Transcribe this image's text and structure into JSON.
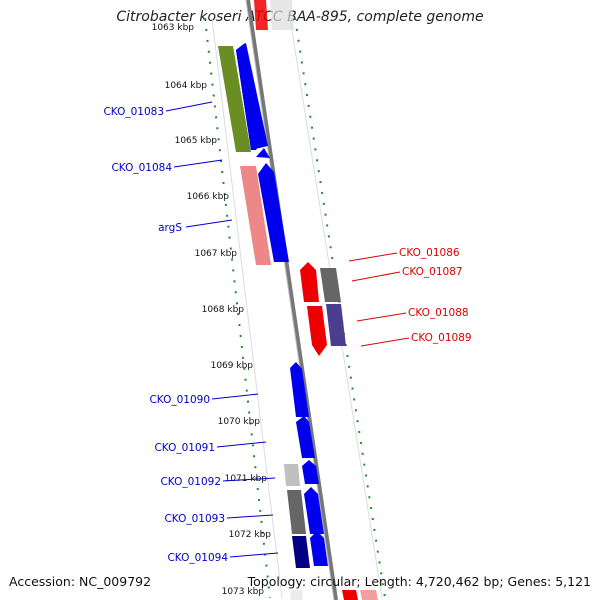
{
  "title": "Citrobacter koseri ATCC BAA-895, complete genome",
  "footer": {
    "accession": "Accession: NC_009792",
    "topology": "Topology: circular; Length: 4,720,462 bp; Genes: 5,121"
  },
  "colors": {
    "backbone": "#888888",
    "feature_blue": "#0000ee",
    "feature_red": "#ee0000",
    "feature_olive": "#6b8e23",
    "feature_pink": "#ee8888",
    "feature_gray": "#666666",
    "feature_slate": "#4a3f8f",
    "feature_navy": "#000080",
    "feature_lightgray": "#c0c0c0",
    "dots": "#228b22",
    "label_blue": "#0000cc",
    "label_red": "#dd0000"
  },
  "ticks": [
    {
      "label": "1063 kbp"
    },
    {
      "label": "1064 kbp"
    },
    {
      "label": "1065 kbp"
    },
    {
      "label": "1066 kbp"
    },
    {
      "label": "1067 kbp"
    },
    {
      "label": "1068 kbp"
    },
    {
      "label": "1069 kbp"
    },
    {
      "label": "1070 kbp"
    },
    {
      "label": "1071 kbp"
    },
    {
      "label": "1072 kbp"
    },
    {
      "label": "1073 kbp"
    }
  ],
  "left_labels": [
    {
      "text": "CKO_01083"
    },
    {
      "text": "CKO_01084"
    },
    {
      "text": "argS"
    },
    {
      "text": "CKO_01090"
    },
    {
      "text": "CKO_01091"
    },
    {
      "text": "CKO_01092"
    },
    {
      "text": "CKO_01093"
    },
    {
      "text": "CKO_01094"
    }
  ],
  "right_labels": [
    {
      "text": "CKO_01086"
    },
    {
      "text": "CKO_01087"
    },
    {
      "text": "CKO_01088"
    },
    {
      "text": "CKO_01089"
    }
  ]
}
